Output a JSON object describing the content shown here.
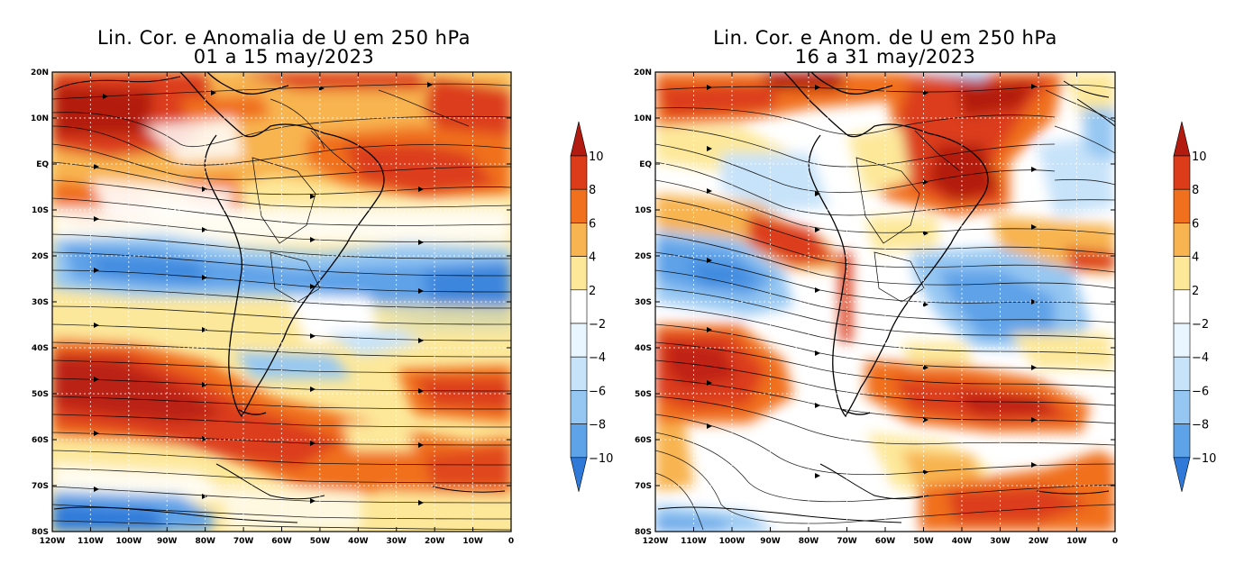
{
  "colors": {
    "c10": "#b31a10",
    "c8": "#dc3c1a",
    "c6": "#f0701e",
    "c4": "#f8b450",
    "c2": "#fde89a",
    "c0": "#ffffff",
    "cm2": "#eaf6ff",
    "cm4": "#c7e3f9",
    "cm6": "#96c7f2",
    "cm8": "#5ea2e8",
    "cm10": "#2f7ad9"
  },
  "panels": [
    {
      "id": "left",
      "title_line1": "Lin. Cor. e Anomalia de U em 250 hPa",
      "title_line2": "01 a 15 may/2023"
    },
    {
      "id": "right",
      "title_line1": "Lin. Cor. e Anom. de U em 250 hPa",
      "title_line2": "16 a 31 may/2023"
    }
  ],
  "lat_labels": [
    "20N",
    "10N",
    "EQ",
    "10S",
    "20S",
    "30S",
    "40S",
    "50S",
    "60S",
    "70S",
    "80S"
  ],
  "lon_labels": [
    "120W",
    "110W",
    "100W",
    "90W",
    "80W",
    "70W",
    "60W",
    "50W",
    "40W",
    "30W",
    "20W",
    "10W",
    "0"
  ],
  "colorbar": {
    "labels": [
      "10",
      "8",
      "6",
      "4",
      "2",
      "−2",
      "−4",
      "−6",
      "−8",
      "−10"
    ]
  }
}
